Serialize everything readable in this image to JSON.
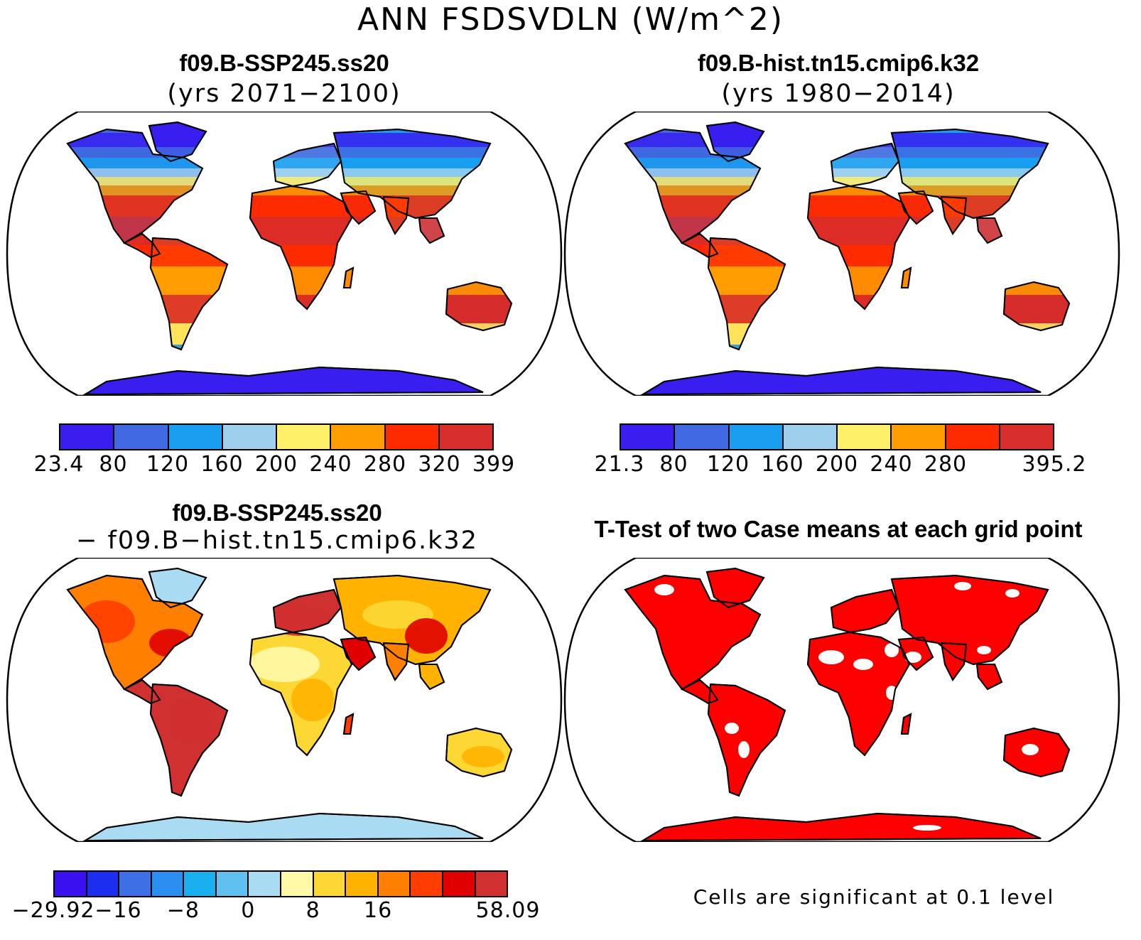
{
  "page_title": "ANN FSDSVDLN (W/m^2)",
  "panels": [
    {
      "id": "future",
      "title": "f09.B-SSP245.ss20",
      "subtitle": "(yrs 2071−2100)",
      "colorbar": {
        "colors": [
          "#3a1ef0",
          "#4169e1",
          "#1a9ff0",
          "#9ed0ee",
          "#fff06a",
          "#ff9c00",
          "#fe2a00",
          "#d72d2d"
        ],
        "labels": [
          "23.4",
          "80",
          "120",
          "160",
          "200",
          "240",
          "280",
          "320",
          "399"
        ]
      }
    },
    {
      "id": "historical",
      "title": "f09.B-hist.tn15.cmip6.k32",
      "subtitle": "(yrs 1980−2014)",
      "colorbar": {
        "colors": [
          "#3a1ef0",
          "#4169e1",
          "#1a9ff0",
          "#9ed0ee",
          "#fff06a",
          "#ff9c00",
          "#fe2a00",
          "#d72d2d"
        ],
        "labels": [
          "21.3",
          "80",
          "120",
          "160",
          "200",
          "240",
          "280",
          "",
          "395.2"
        ]
      }
    },
    {
      "id": "difference",
      "title": "f09.B-SSP245.ss20",
      "subtitle": "− f09.B−hist.tn15.cmip6.k32",
      "colorbar": {
        "colors": [
          "#3a0ff0",
          "#1e2ef0",
          "#3e6fe4",
          "#2a8ff0",
          "#1ab0f0",
          "#60c0f0",
          "#a9dcf2",
          "#fff9a8",
          "#fdd835",
          "#ffb300",
          "#ff8000",
          "#ff3d00",
          "#e00000",
          "#d03030"
        ],
        "labels": [
          "−29.92",
          "",
          "−16",
          "",
          "−8",
          "",
          "0",
          "",
          "8",
          "",
          "16",
          "",
          "",
          "",
          "58.09"
        ]
      }
    },
    {
      "id": "ttest",
      "title": "T-Test of two Case means at each grid point",
      "note": "Cells are significant at 0.1 level"
    }
  ],
  "map_style": {
    "ocean": "#ffffff",
    "ttest_fill": "#ff0000"
  }
}
